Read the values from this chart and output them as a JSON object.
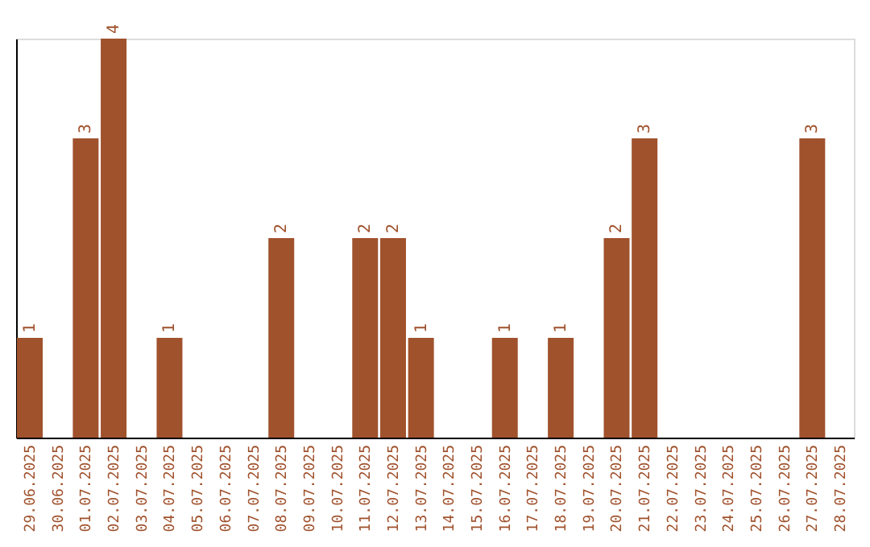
{
  "chart_data": {
    "type": "bar",
    "categories": [
      "29.06.2025",
      "30.06.2025",
      "01.07.2025",
      "02.07.2025",
      "03.07.2025",
      "04.07.2025",
      "05.07.2025",
      "06.07.2025",
      "07.07.2025",
      "08.07.2025",
      "09.07.2025",
      "10.07.2025",
      "11.07.2025",
      "12.07.2025",
      "13.07.2025",
      "14.07.2025",
      "15.07.2025",
      "16.07.2025",
      "17.07.2025",
      "18.07.2025",
      "19.07.2025",
      "20.07.2025",
      "21.07.2025",
      "22.07.2025",
      "23.07.2025",
      "24.07.2025",
      "25.07.2025",
      "26.07.2025",
      "27.07.2025",
      "28.07.2025"
    ],
    "values": [
      1,
      0,
      3,
      4,
      0,
      1,
      0,
      0,
      0,
      2,
      0,
      0,
      2,
      2,
      1,
      0,
      0,
      1,
      0,
      1,
      0,
      2,
      3,
      0,
      0,
      0,
      0,
      0,
      3,
      0
    ],
    "value_labels": [
      "1",
      null,
      "3",
      "4",
      null,
      "1",
      null,
      null,
      null,
      "2",
      null,
      null,
      "2",
      "2",
      "1",
      null,
      null,
      "1",
      null,
      "1",
      null,
      "2",
      "3",
      null,
      null,
      null,
      null,
      null,
      "3",
      null
    ],
    "color": "#a0522d",
    "grid": false
  }
}
